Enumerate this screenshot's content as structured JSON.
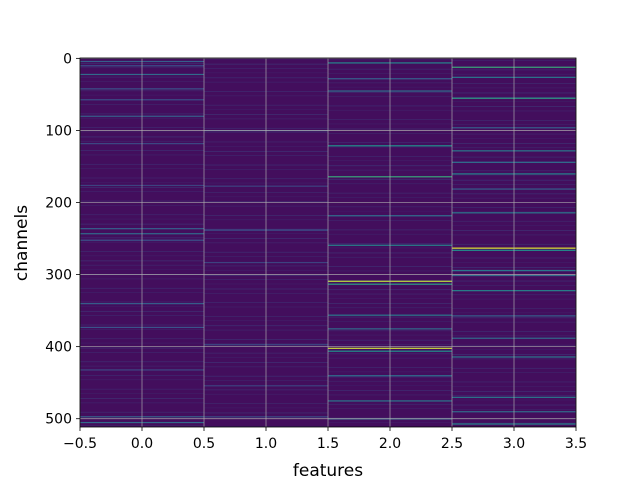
{
  "chart_data": {
    "type": "heatmap",
    "title": "",
    "xlabel": "features",
    "ylabel": "channels",
    "xlim": [
      -0.5,
      3.5
    ],
    "ylim": [
      511.5,
      -0.5
    ],
    "n_rows": 512,
    "n_cols": 4,
    "colormap": "viridis",
    "value_range": [
      0,
      1
    ],
    "grid": true,
    "background_level": 0.04,
    "x_ticks": [
      -0.5,
      0.0,
      0.5,
      1.0,
      1.5,
      2.0,
      2.5,
      3.0,
      3.5
    ],
    "x_tick_labels": [
      "−0.5",
      "0.0",
      "0.5",
      "1.0",
      "1.5",
      "2.0",
      "2.5",
      "3.0",
      "3.5"
    ],
    "y_ticks": [
      0,
      100,
      200,
      300,
      400,
      500
    ],
    "y_tick_labels": [
      "0",
      "100",
      "200",
      "300",
      "400",
      "500"
    ],
    "columns": [
      {
        "feature": 0,
        "bright_rows": [
          {
            "row": 4,
            "value": 0.3
          },
          {
            "row": 10,
            "value": 0.25
          },
          {
            "row": 22,
            "value": 0.35
          },
          {
            "row": 42,
            "value": 0.25
          },
          {
            "row": 57,
            "value": 0.22
          },
          {
            "row": 80,
            "value": 0.3
          },
          {
            "row": 118,
            "value": 0.22
          },
          {
            "row": 176,
            "value": 0.2
          },
          {
            "row": 236,
            "value": 0.3
          },
          {
            "row": 243,
            "value": 0.35
          },
          {
            "row": 252,
            "value": 0.25
          },
          {
            "row": 340,
            "value": 0.3
          },
          {
            "row": 373,
            "value": 0.25
          },
          {
            "row": 432,
            "value": 0.22
          },
          {
            "row": 497,
            "value": 0.3
          },
          {
            "row": 505,
            "value": 0.35
          }
        ]
      },
      {
        "feature": 1,
        "bright_rows": [
          {
            "row": 100,
            "value": 0.22
          },
          {
            "row": 177,
            "value": 0.2
          },
          {
            "row": 238,
            "value": 0.25
          },
          {
            "row": 283,
            "value": 0.2
          },
          {
            "row": 397,
            "value": 0.22
          },
          {
            "row": 454,
            "value": 0.2
          },
          {
            "row": 497,
            "value": 0.22
          }
        ]
      },
      {
        "feature": 2,
        "bright_rows": [
          {
            "row": 6,
            "value": 0.45
          },
          {
            "row": 28,
            "value": 0.3
          },
          {
            "row": 45,
            "value": 0.35
          },
          {
            "row": 121,
            "value": 0.5
          },
          {
            "row": 164,
            "value": 0.6
          },
          {
            "row": 218,
            "value": 0.35
          },
          {
            "row": 259,
            "value": 0.45
          },
          {
            "row": 309,
            "value": 0.9
          },
          {
            "row": 313,
            "value": 0.55
          },
          {
            "row": 356,
            "value": 0.4
          },
          {
            "row": 375,
            "value": 0.35
          },
          {
            "row": 402,
            "value": 0.92
          },
          {
            "row": 406,
            "value": 0.5
          },
          {
            "row": 440,
            "value": 0.35
          },
          {
            "row": 475,
            "value": 0.4
          },
          {
            "row": 500,
            "value": 0.35
          }
        ]
      },
      {
        "feature": 3,
        "bright_rows": [
          {
            "row": 12,
            "value": 0.6
          },
          {
            "row": 26,
            "value": 0.4
          },
          {
            "row": 55,
            "value": 0.55
          },
          {
            "row": 96,
            "value": 0.3
          },
          {
            "row": 128,
            "value": 0.4
          },
          {
            "row": 144,
            "value": 0.35
          },
          {
            "row": 160,
            "value": 0.45
          },
          {
            "row": 181,
            "value": 0.3
          },
          {
            "row": 214,
            "value": 0.4
          },
          {
            "row": 263,
            "value": 0.95
          },
          {
            "row": 266,
            "value": 0.5
          },
          {
            "row": 294,
            "value": 0.4
          },
          {
            "row": 301,
            "value": 0.35
          },
          {
            "row": 322,
            "value": 0.45
          },
          {
            "row": 357,
            "value": 0.3
          },
          {
            "row": 388,
            "value": 0.35
          },
          {
            "row": 414,
            "value": 0.4
          },
          {
            "row": 470,
            "value": 0.4
          },
          {
            "row": 490,
            "value": 0.35
          },
          {
            "row": 507,
            "value": 0.45
          }
        ]
      }
    ]
  }
}
